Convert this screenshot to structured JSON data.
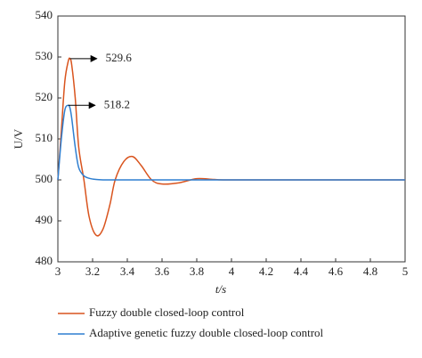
{
  "chart_data": {
    "type": "line",
    "xlabel": "t/s",
    "ylabel": "U/V",
    "x": [
      3.0,
      3.02,
      3.04,
      3.06,
      3.07,
      3.08,
      3.1,
      3.12,
      3.15,
      3.18,
      3.22,
      3.26,
      3.3,
      3.33,
      3.38,
      3.43,
      3.48,
      3.54,
      3.6,
      3.7,
      3.8,
      3.9,
      4.0,
      4.5,
      5.0
    ],
    "series": [
      {
        "name": "Fuzzy double closed-loop control",
        "color": "#d9541e",
        "values": [
          500,
          512,
          524,
          529,
          529.6,
          528,
          520,
          508,
          500,
          491,
          486.5,
          488,
          494,
          500,
          504.5,
          505.7,
          503.5,
          500,
          499,
          499.3,
          500.3,
          500.1,
          500,
          500,
          500
        ]
      },
      {
        "name": "Adaptive genetic fuzzy double closed-loop control",
        "color": "#2f7fd0",
        "values": [
          500,
          510,
          517,
          518.2,
          517.5,
          515,
          508,
          503,
          501,
          500.4,
          500.1,
          500,
          500,
          500,
          500,
          500,
          500,
          500,
          500,
          500,
          500,
          500,
          500,
          500,
          500
        ]
      }
    ],
    "annotations": [
      "529.6",
      "518.2"
    ],
    "xlim": [
      3,
      5
    ],
    "xticks": [
      3,
      3.2,
      3.4,
      3.6,
      3.8,
      4,
      4.2,
      4.4,
      4.6,
      4.8,
      5
    ],
    "ylim": [
      480,
      540
    ],
    "yticks": [
      480,
      490,
      500,
      510,
      520,
      530,
      540
    ],
    "legend": "bottom"
  }
}
